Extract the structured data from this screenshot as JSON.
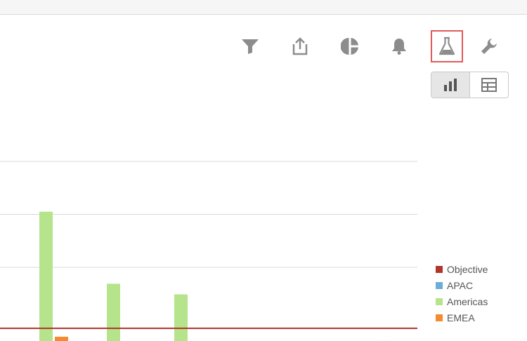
{
  "toolbar": {
    "buttons": [
      {
        "id": "filter",
        "icon": "filter-icon"
      },
      {
        "id": "share",
        "icon": "share-icon"
      },
      {
        "id": "pie",
        "icon": "pie-chart-icon"
      },
      {
        "id": "alerts",
        "icon": "bell-icon"
      },
      {
        "id": "labs",
        "icon": "flask-icon",
        "active": true
      },
      {
        "id": "settings",
        "icon": "wrench-icon"
      }
    ]
  },
  "view_toggle": {
    "options": [
      {
        "id": "chart",
        "icon": "bar-chart-icon",
        "selected": true
      },
      {
        "id": "table",
        "icon": "table-icon",
        "selected": false
      }
    ]
  },
  "colors": {
    "objective": "#b0352a",
    "apac": "#6aaed6",
    "americas": "#b5e48c",
    "emea": "#f58a2f",
    "active_border": "#e05a5a",
    "icon": "#8c8c8c"
  },
  "chart_data": {
    "type": "bar",
    "ylim": [
      0,
      1
    ],
    "grid": true,
    "legend_position": "right",
    "series": [
      {
        "name": "Objective",
        "type": "line",
        "color": "#b0352a",
        "value": 0.08
      },
      {
        "name": "APAC",
        "color": "#6aaed6",
        "bars": [
          {
            "slot": 1,
            "value": 0.02
          }
        ]
      },
      {
        "name": "Americas",
        "color": "#b5e48c",
        "bars": [
          {
            "slot": 0,
            "value": 0.63
          },
          {
            "slot": 1,
            "value": 0.29
          },
          {
            "slot": 2,
            "value": 0.24
          },
          {
            "slot": 5,
            "value": 0.02
          }
        ]
      },
      {
        "name": "EMEA",
        "color": "#f58a2f",
        "bars": [
          {
            "slot": 0,
            "value": 0.04
          }
        ]
      }
    ]
  },
  "legend": {
    "items": [
      {
        "label": "Objective",
        "color": "#b0352a"
      },
      {
        "label": "APAC",
        "color": "#6aaed6"
      },
      {
        "label": "Americas",
        "color": "#b5e48c"
      },
      {
        "label": "EMEA",
        "color": "#f58a2f"
      }
    ]
  }
}
